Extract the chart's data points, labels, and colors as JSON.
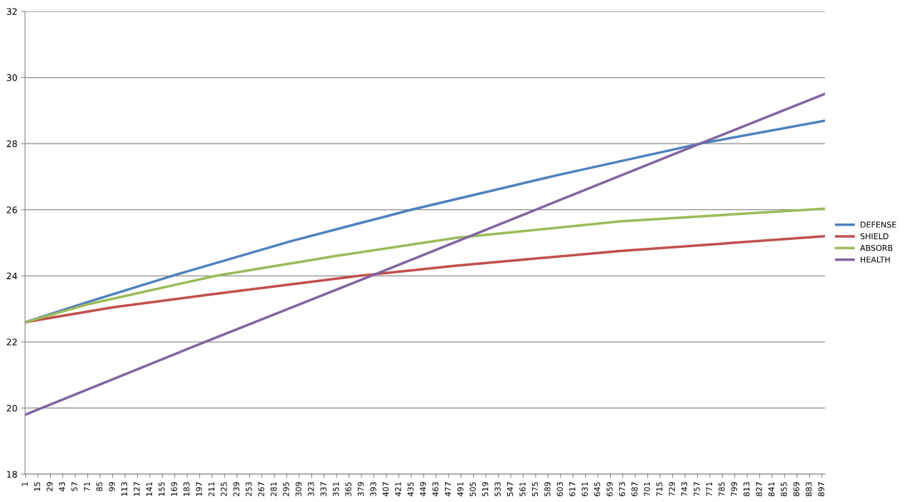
{
  "chart_data": {
    "type": "line",
    "series": [
      {
        "name": "DEFENSE",
        "color": "#4f81bd",
        "x": [
          1,
          70,
          166,
          300,
          435,
          600,
          760,
          900
        ],
        "values": [
          22.6,
          23.2,
          24,
          25.05,
          26,
          27.05,
          28,
          28.69
        ]
      },
      {
        "name": "SHIELD",
        "color": "#c0504d",
        "x": [
          1,
          100,
          202,
          376,
          486,
          670,
          900
        ],
        "values": [
          22.6,
          23.05,
          23.41,
          24,
          24.31,
          24.75,
          25.2
        ]
      },
      {
        "name": "ABSORB",
        "color": "#9bbb59",
        "x": [
          1,
          70,
          215,
          350,
          486,
          670,
          900
        ],
        "values": [
          22.6,
          23.13,
          24,
          24.6,
          25.15,
          25.65,
          26.03
        ]
      },
      {
        "name": "HEALTH",
        "color": "#8064a2",
        "x": [
          1,
          203,
          390,
          760,
          900
        ],
        "values": [
          19.8,
          22,
          24,
          28,
          29.5
        ]
      }
    ],
    "xlim": [
      0.5,
      900.5
    ],
    "xticks": [
      1,
      15,
      29,
      43,
      57,
      71,
      85,
      99,
      113,
      127,
      141,
      155,
      169,
      183,
      197,
      211,
      225,
      239,
      253,
      267,
      281,
      295,
      309,
      323,
      337,
      351,
      365,
      379,
      393,
      407,
      421,
      435,
      449,
      463,
      477,
      491,
      505,
      519,
      533,
      547,
      561,
      575,
      589,
      603,
      617,
      631,
      645,
      659,
      673,
      687,
      701,
      715,
      729,
      743,
      757,
      771,
      785,
      799,
      813,
      827,
      841,
      855,
      869,
      883,
      897
    ],
    "ylim": [
      18,
      32
    ],
    "yticks": [
      18,
      20,
      22,
      24,
      26,
      28,
      30,
      32
    ],
    "grid": "y",
    "legend": "right",
    "marker": "none",
    "line_style": "solid"
  }
}
